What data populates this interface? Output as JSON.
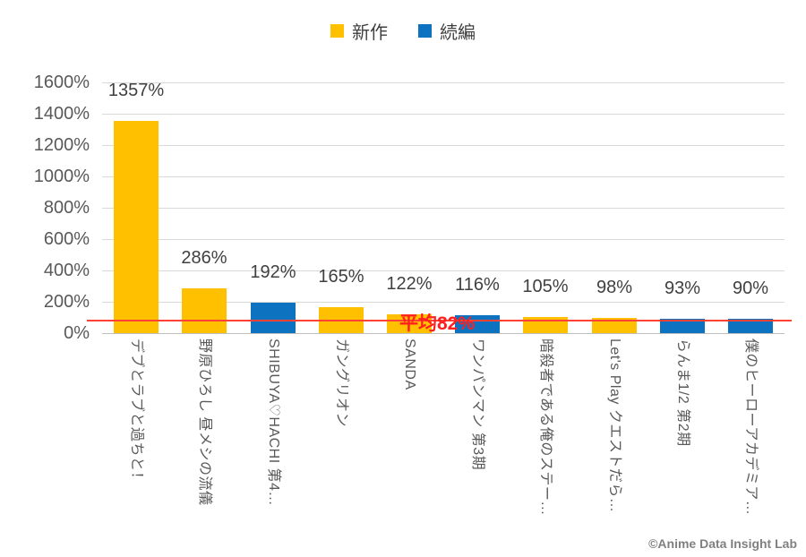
{
  "legend": {
    "items": [
      {
        "label": "新作",
        "color": "#FFC000"
      },
      {
        "label": "続編",
        "color": "#0D72C0"
      }
    ]
  },
  "chart_data": {
    "type": "bar",
    "title": "",
    "categories": [
      "デブとラブと過ちと！",
      "野原ひろし 昼メシの流儀",
      "SHIBUYA♡HACHI 第4…",
      "ガングリオン",
      "SANDA",
      "ワンパンマン 第3期",
      "暗殺者である俺のステー…",
      "Let's Play クエストだら…",
      "らんま1/2 第2期",
      "僕のヒーローアカデミア…"
    ],
    "values_percent": [
      1357,
      286,
      192,
      165,
      122,
      116,
      105,
      98,
      93,
      90
    ],
    "data_labels": [
      "1357%",
      "286%",
      "192%",
      "165%",
      "122%",
      "116%",
      "105%",
      "98%",
      "93%",
      "90%"
    ],
    "bar_series": [
      "新作",
      "新作",
      "続編",
      "新作",
      "新作",
      "続編",
      "新作",
      "新作",
      "続編",
      "続編"
    ],
    "legend_entries": [
      "新作",
      "続編"
    ],
    "legend_position": "top",
    "xlabel": "",
    "ylabel": "",
    "ylim": [
      0,
      1600
    ],
    "y_tick_step": 200,
    "y_ticks_top_to_bottom": [
      "1600%",
      "1400%",
      "1200%",
      "1000%",
      "800%",
      "600%",
      "400%",
      "200%",
      "0%"
    ],
    "grid": true,
    "average_line": {
      "value_percent": 82,
      "label": "平均82%"
    }
  },
  "colors": {
    "new_series": "#FFC000",
    "sequel_series": "#0D72C0",
    "average_line": "#FF4136",
    "average_label": "#FF1F1F",
    "gridline": "#D9D9D9",
    "axis_line": "#BFBFBF",
    "tick_text": "#595959",
    "data_label_text": "#404040",
    "category_text": "#595959"
  },
  "footer": {
    "copyright": "©Anime Data Insight Lab"
  }
}
